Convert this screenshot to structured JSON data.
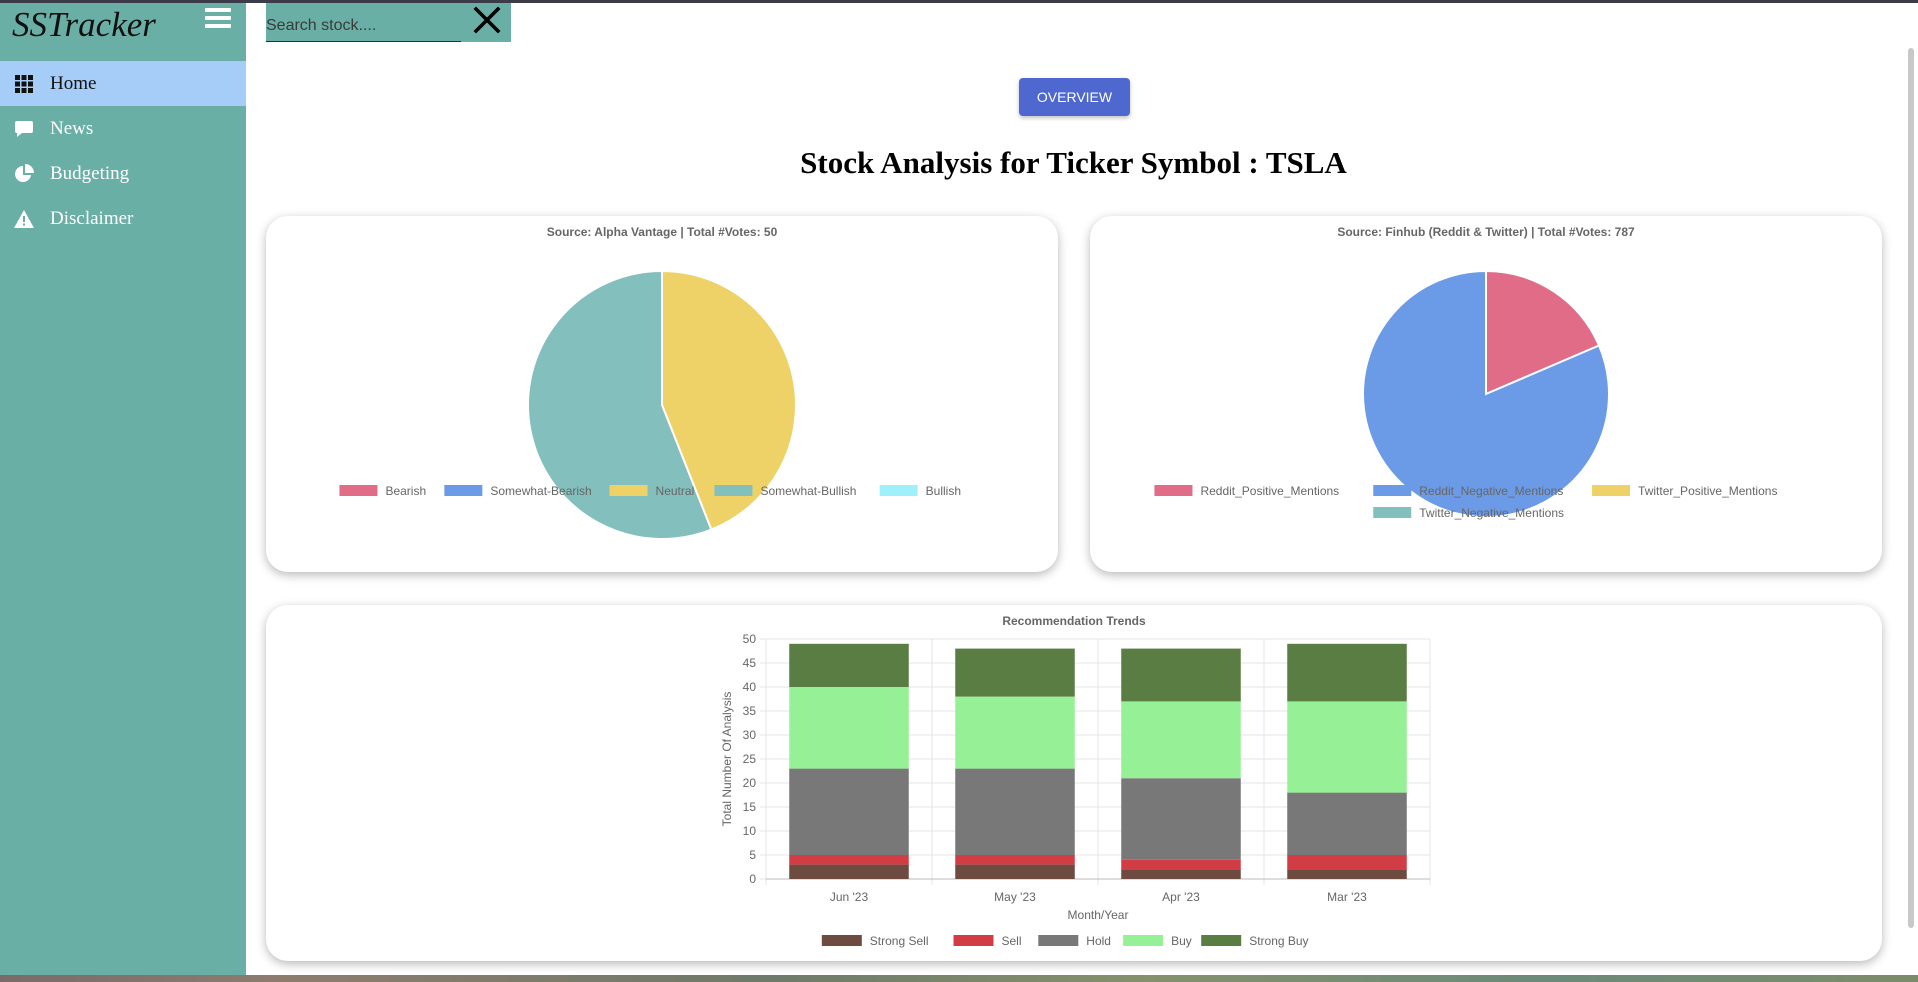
{
  "sidebar": {
    "brand": "SSTracker",
    "items": [
      {
        "label": "Home",
        "icon": "grid-icon",
        "active": true
      },
      {
        "label": "News",
        "icon": "chat-bubble-icon",
        "active": false
      },
      {
        "label": "Budgeting",
        "icon": "pie-chart-icon",
        "active": false
      },
      {
        "label": "Disclaimer",
        "icon": "warning-icon",
        "active": false
      }
    ]
  },
  "search": {
    "placeholder": "Search stock...."
  },
  "overview_label": "OVERVIEW",
  "page_title": "Stock Analysis for Ticker Symbol : TSLA",
  "colors": {
    "sidebar": "#6aafa6",
    "active_nav": "#a5cdf8",
    "button": "#4e68d0"
  },
  "chart_data": [
    {
      "type": "pie",
      "title": "Source: Alpha Vantage | Total #Votes: 50",
      "labels": [
        "Bearish",
        "Somewhat-Bearish",
        "Neutral",
        "Somewhat-Bullish",
        "Bullish"
      ],
      "values": [
        0,
        0,
        22,
        28,
        0
      ],
      "colors": [
        "#e06c88",
        "#6b9be6",
        "#eed268",
        "#82bfbd",
        "#9ef1fa"
      ],
      "legend": "bottom"
    },
    {
      "type": "pie",
      "title": "Source: Finhub (Reddit & Twitter) | Total #Votes: 787",
      "labels": [
        "Reddit_Positive_Mentions",
        "Reddit_Negative_Mentions",
        "Twitter_Positive_Mentions",
        "Twitter_Negative_Mentions"
      ],
      "values": [
        146,
        641,
        0,
        0
      ],
      "colors": [
        "#e06c88",
        "#6b9be6",
        "#eed268",
        "#82bfbd"
      ],
      "legend": "bottom"
    },
    {
      "type": "bar",
      "stacked": true,
      "title": "Recommendation Trends",
      "xlabel": "Month/Year",
      "ylabel": "Total Number Of Analysis",
      "categories": [
        "Jun '23",
        "May '23",
        "Apr '23",
        "Mar '23"
      ],
      "ylim": [
        0,
        50
      ],
      "yticks": [
        0,
        5,
        10,
        15,
        20,
        25,
        30,
        35,
        40,
        45,
        50
      ],
      "grid": true,
      "legend": "bottom",
      "series": [
        {
          "name": "Strong Sell",
          "color": "#6e4b41",
          "values": [
            3,
            3,
            2,
            2
          ]
        },
        {
          "name": "Sell",
          "color": "#d23c45",
          "values": [
            2,
            2,
            2,
            3
          ]
        },
        {
          "name": "Hold",
          "color": "#787878",
          "values": [
            18,
            18,
            17,
            13
          ]
        },
        {
          "name": "Buy",
          "color": "#96f096",
          "values": [
            17,
            15,
            16,
            19
          ]
        },
        {
          "name": "Strong Buy",
          "color": "#5a7d44",
          "values": [
            9,
            10,
            11,
            12
          ]
        }
      ]
    }
  ]
}
